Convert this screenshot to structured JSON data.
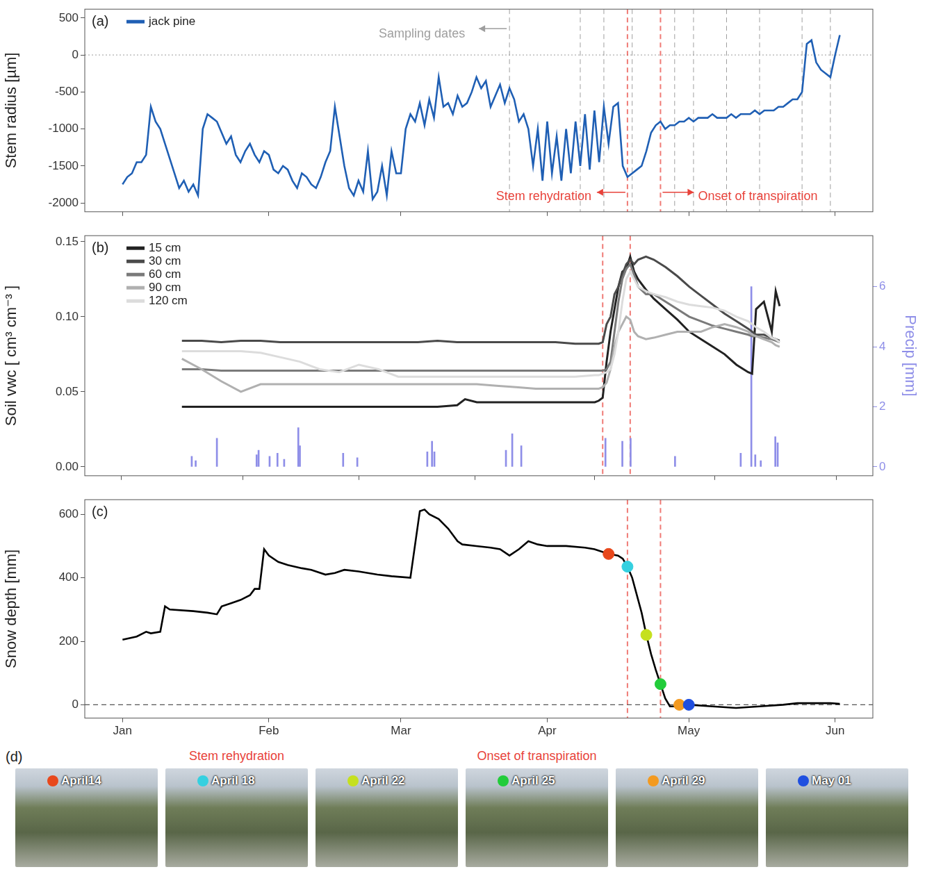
{
  "chart_data": [
    {
      "type": "line",
      "panel": "(a)",
      "x": [
        0,
        1,
        2,
        3,
        4,
        5,
        6,
        7,
        8,
        9,
        10,
        11,
        12,
        13,
        14,
        15,
        16,
        17,
        18,
        19,
        20,
        21,
        22,
        23,
        24,
        25,
        26,
        27,
        28,
        29,
        30,
        31,
        32,
        33,
        34,
        35,
        36,
        37,
        38,
        39,
        40,
        41,
        42,
        43,
        44,
        45,
        46,
        47,
        48,
        49,
        50,
        51,
        52,
        53,
        54,
        55,
        56,
        57,
        58,
        59,
        60,
        61,
        62,
        63,
        64,
        65,
        66,
        67,
        68,
        69,
        70,
        71,
        72,
        73,
        74,
        75,
        76,
        77,
        78,
        79,
        80,
        81,
        82,
        83,
        84,
        85,
        86,
        87,
        88,
        89,
        90,
        91,
        92,
        93,
        94,
        95,
        96,
        97,
        98,
        99,
        100,
        101,
        102,
        103,
        104,
        105,
        106,
        107,
        108,
        109,
        110,
        111,
        112,
        113,
        114,
        115,
        116,
        117,
        118,
        119,
        120,
        121,
        122,
        123,
        124,
        125,
        126,
        127,
        128,
        129,
        130,
        131,
        132,
        133,
        134,
        135,
        136,
        137,
        138,
        139,
        140,
        141,
        142,
        143,
        144,
        145,
        146,
        147,
        148,
        149,
        150,
        151,
        152
      ],
      "series": [
        {
          "name": "jack pine",
          "color": "#1f5fb4",
          "values": [
            -1750,
            -1650,
            -1600,
            -1450,
            -1450,
            -1350,
            -700,
            -900,
            -1000,
            -1200,
            -1400,
            -1600,
            -1800,
            -1700,
            -1850,
            -1750,
            -1900,
            -1000,
            -800,
            -850,
            -900,
            -1050,
            -1200,
            -1100,
            -1350,
            -1450,
            -1300,
            -1200,
            -1350,
            -1450,
            -1300,
            -1350,
            -1550,
            -1600,
            -1500,
            -1550,
            -1700,
            -1800,
            -1600,
            -1650,
            -1750,
            -1800,
            -1650,
            -1450,
            -1300,
            -700,
            -1100,
            -1500,
            -1800,
            -1900,
            -1700,
            -1850,
            -1300,
            -1950,
            -1850,
            -1500,
            -1900,
            -1300,
            -1600,
            -1600,
            -1000,
            -800,
            -900,
            -650,
            -950,
            -600,
            -850,
            -300,
            -700,
            -650,
            -800,
            -550,
            -700,
            -650,
            -500,
            -300,
            -450,
            -350,
            -700,
            -550,
            -400,
            -650,
            -450,
            -600,
            -900,
            -800,
            -1000,
            -1500,
            -1000,
            -1700,
            -900,
            -1600,
            -1100,
            -1700,
            -1000,
            -1600,
            -900,
            -1500,
            -800,
            -1550,
            -750,
            -1450,
            -700,
            -1200,
            -700,
            -650,
            -1500,
            -1650,
            -1600,
            -1550,
            -1500,
            -1300,
            -1050,
            -950,
            -900,
            -1000,
            -950,
            -950,
            -900,
            -900,
            -850,
            -900,
            -850,
            -850,
            -850,
            -800,
            -850,
            -850,
            -850,
            -800,
            -850,
            -800,
            -800,
            -800,
            -750,
            -800,
            -750,
            -750,
            -750,
            -700,
            -700,
            -650,
            -600,
            -600,
            -500,
            150,
            200,
            -100,
            -200,
            -250,
            -300,
            0,
            270
          ]
        }
      ],
      "xlim": [
        -8,
        159
      ],
      "xticks": [
        {
          "value": 0,
          "label": "Jan"
        },
        {
          "value": 31,
          "label": "Feb"
        },
        {
          "value": 59,
          "label": "Mar"
        },
        {
          "value": 90,
          "label": "Apr"
        },
        {
          "value": 120,
          "label": "May"
        },
        {
          "value": 151,
          "label": "Jun"
        }
      ],
      "ylim": [
        -2120,
        620
      ],
      "yticks": [
        -2000,
        -1500,
        -1000,
        -500,
        0,
        500
      ],
      "y_label": "Stem radius [µm]",
      "tick_labels": "y",
      "grid": false,
      "legend": "upper left",
      "hlines": [
        {
          "y": 0,
          "line_style": "dotted",
          "color": "#b0b0b0"
        }
      ],
      "sampling_dates": {
        "label": "Sampling dates",
        "color": "#9e9e9e",
        "line_style": "dashed",
        "x": [
          82,
          97,
          102,
          108,
          117,
          121,
          128,
          135,
          144,
          150
        ]
      },
      "events": [
        {
          "x": 107,
          "label": "Stem rehydration",
          "color": "#e8423a",
          "line_style": "dashed"
        },
        {
          "x": 114,
          "label": "Onset of transpiration",
          "color": "#e8423a",
          "line_style": "dashed"
        }
      ]
    },
    {
      "type": "line",
      "panel": "(b)",
      "x": [
        0,
        5,
        10,
        15,
        20,
        25,
        30,
        35,
        40,
        45,
        50,
        55,
        60,
        65,
        70,
        72,
        75,
        80,
        85,
        90,
        95,
        100,
        105,
        106,
        107,
        108,
        109,
        110,
        111,
        112,
        113,
        114,
        115,
        116,
        118,
        120,
        123,
        126,
        129,
        132,
        135,
        138,
        141,
        144,
        145,
        146,
        148,
        150,
        151,
        152
      ],
      "series": [
        {
          "name": "15 cm",
          "color": "#222222",
          "values": [
            0.04,
            0.04,
            0.04,
            0.04,
            0.04,
            0.04,
            0.04,
            0.04,
            0.04,
            0.04,
            0.04,
            0.04,
            0.04,
            0.04,
            0.041,
            0.045,
            0.043,
            0.043,
            0.043,
            0.043,
            0.043,
            0.043,
            0.043,
            0.044,
            0.046,
            0.07,
            0.09,
            0.105,
            0.12,
            0.13,
            0.132,
            0.14,
            0.13,
            0.125,
            0.118,
            0.112,
            0.105,
            0.098,
            0.09,
            0.085,
            0.08,
            0.075,
            0.068,
            0.063,
            0.062,
            0.105,
            0.11,
            0.09,
            0.117,
            0.107
          ]
        },
        {
          "name": "30 cm",
          "color": "#4a4a4a",
          "values": [
            0.084,
            0.084,
            0.083,
            0.084,
            0.084,
            0.083,
            0.083,
            0.083,
            0.083,
            0.083,
            0.083,
            0.083,
            0.083,
            0.084,
            0.083,
            0.083,
            0.083,
            0.083,
            0.083,
            0.083,
            0.083,
            0.082,
            0.082,
            0.082,
            0.083,
            0.095,
            0.1,
            0.115,
            0.12,
            0.128,
            0.135,
            0.138,
            0.135,
            0.138,
            0.14,
            0.138,
            0.133,
            0.127,
            0.12,
            0.114,
            0.108,
            0.102,
            0.097,
            0.092,
            0.09,
            0.088,
            0.088,
            0.086,
            0.085,
            0.084
          ]
        },
        {
          "name": "60 cm",
          "color": "#7a7a7a",
          "values": [
            0.065,
            0.065,
            0.064,
            0.064,
            0.064,
            0.064,
            0.064,
            0.064,
            0.064,
            0.064,
            0.064,
            0.064,
            0.064,
            0.064,
            0.064,
            0.064,
            0.064,
            0.064,
            0.064,
            0.064,
            0.064,
            0.064,
            0.064,
            0.064,
            0.064,
            0.065,
            0.07,
            0.09,
            0.11,
            0.125,
            0.132,
            0.135,
            0.128,
            0.12,
            0.115,
            0.115,
            0.11,
            0.105,
            0.1,
            0.097,
            0.094,
            0.092,
            0.09,
            0.088,
            0.087,
            0.087,
            0.086,
            0.085,
            0.084,
            0.083
          ]
        },
        {
          "name": "90 cm",
          "color": "#b0b0b0",
          "values": [
            0.072,
            0.065,
            0.057,
            0.05,
            0.055,
            0.055,
            0.055,
            0.055,
            0.055,
            0.055,
            0.055,
            0.055,
            0.055,
            0.055,
            0.055,
            0.055,
            0.055,
            0.054,
            0.053,
            0.052,
            0.052,
            0.052,
            0.052,
            0.052,
            0.053,
            0.056,
            0.065,
            0.08,
            0.09,
            0.095,
            0.1,
            0.098,
            0.09,
            0.087,
            0.085,
            0.086,
            0.088,
            0.09,
            0.09,
            0.09,
            0.093,
            0.095,
            0.093,
            0.09,
            0.088,
            0.087,
            0.085,
            0.083,
            0.081,
            0.08
          ]
        },
        {
          "name": "120 cm",
          "color": "#dcdcdc",
          "values": [
            0.077,
            0.077,
            0.077,
            0.077,
            0.076,
            0.073,
            0.07,
            0.065,
            0.063,
            0.068,
            0.065,
            0.06,
            0.06,
            0.06,
            0.06,
            0.06,
            0.06,
            0.06,
            0.06,
            0.06,
            0.06,
            0.06,
            0.061,
            0.061,
            0.062,
            0.063,
            0.065,
            0.075,
            0.09,
            0.11,
            0.125,
            0.13,
            0.125,
            0.12,
            0.117,
            0.115,
            0.113,
            0.11,
            0.108,
            0.107,
            0.106,
            0.104,
            0.1,
            0.097,
            0.095,
            0.093,
            0.09,
            0.086,
            0.085,
            0.083
          ]
        },
        {
          "type": "bar",
          "axis": "y2",
          "color": "#8e8ee8",
          "x": [
            2.5,
            3.5,
            8.9,
            19,
            19.5,
            22.3,
            24.3,
            26,
            29.6,
            30,
            41,
            44.6,
            62.4,
            63.6,
            64.2,
            82.4,
            84,
            86.3,
            107.7,
            112,
            114.1,
            125.4,
            142.1,
            144.8,
            145.8,
            147.2,
            150.9,
            151.5
          ],
          "values": [
            0.35,
            0.2,
            0.95,
            0.4,
            0.55,
            0.35,
            0.45,
            0.25,
            1.3,
            0.7,
            0.45,
            0.3,
            0.5,
            0.85,
            0.5,
            0.55,
            1.1,
            0.7,
            0.95,
            0.85,
            0.95,
            0.35,
            0.45,
            6,
            0.4,
            0.2,
            1.0,
            0.8
          ]
        }
      ],
      "xlim": [
        -8,
        159
      ],
      "xticks": [
        {
          "value": 0,
          "label": "Jan"
        },
        {
          "value": 31,
          "label": "Feb"
        },
        {
          "value": 59,
          "label": "Mar"
        },
        {
          "value": 90,
          "label": "Apr"
        },
        {
          "value": 120,
          "label": "May"
        },
        {
          "value": 151,
          "label": "Jun"
        }
      ],
      "ylim": [
        -0.006,
        0.154
      ],
      "yticks": [
        {
          "value": 0,
          "label": "0.00"
        },
        {
          "value": 0.05,
          "label": "0.05"
        },
        {
          "value": 0.1,
          "label": "0.10"
        },
        {
          "value": 0.15,
          "label": "0.15"
        }
      ],
      "y_label": "Soil vwc [ cm³ cm⁻³ ]",
      "y2lim": [
        -0.3,
        7.7
      ],
      "y2ticks": [
        0,
        2,
        4,
        6
      ],
      "y2_label": "Precip [mm]",
      "tick_labels": "y",
      "grid": false,
      "legend": "upper left",
      "events": [
        {
          "x": 107,
          "color": "#e8423a",
          "line_style": "dashed"
        },
        {
          "x": 114,
          "color": "#e8423a",
          "line_style": "dashed"
        }
      ]
    },
    {
      "type": "line",
      "panel": "(c)",
      "x": [
        0,
        3,
        5,
        6,
        8,
        9,
        10,
        15,
        18,
        20,
        21,
        23,
        25,
        27,
        28,
        29,
        30,
        31,
        33,
        35,
        38,
        40,
        43,
        45,
        47,
        50,
        54,
        57,
        61,
        63,
        64,
        65,
        67,
        69,
        71,
        72,
        75,
        78,
        80,
        82,
        84,
        86,
        88,
        90,
        94,
        98,
        100,
        103,
        105,
        106,
        107,
        108,
        110,
        111,
        112,
        113,
        114,
        115,
        116,
        118,
        120,
        125,
        130,
        135,
        140,
        143,
        145,
        150,
        152
      ],
      "series": [
        {
          "color": "#000000",
          "values": [
            205,
            215,
            230,
            225,
            230,
            310,
            300,
            295,
            290,
            285,
            310,
            320,
            330,
            345,
            365,
            365,
            490,
            470,
            450,
            440,
            430,
            425,
            410,
            415,
            425,
            420,
            410,
            405,
            400,
            610,
            615,
            600,
            585,
            555,
            515,
            505,
            500,
            495,
            490,
            470,
            490,
            515,
            505,
            500,
            500,
            495,
            490,
            475,
            470,
            460,
            435,
            400,
            290,
            220,
            160,
            110,
            65,
            20,
            -5,
            -5,
            0,
            -5,
            -10,
            -5,
            0,
            5,
            5,
            5,
            3
          ]
        }
      ],
      "markers": {
        "marker": "circle",
        "x": [
          103,
          107,
          111,
          114,
          118,
          120
        ],
        "values": [
          475,
          435,
          220,
          65,
          0,
          0
        ],
        "colors": [
          "#e8481c",
          "#35d0e0",
          "#c5e01f",
          "#22cc3a",
          "#f39a20",
          "#1f4fe0"
        ]
      },
      "xlim": [
        -8,
        159
      ],
      "xticks": [
        {
          "value": 0,
          "label": "Jan"
        },
        {
          "value": 31,
          "label": "Feb"
        },
        {
          "value": 59,
          "label": "Mar"
        },
        {
          "value": 90,
          "label": "Apr"
        },
        {
          "value": 120,
          "label": "May"
        },
        {
          "value": 151,
          "label": "Jun"
        }
      ],
      "ylim": [
        -42,
        646
      ],
      "yticks": [
        0,
        200,
        400,
        600
      ],
      "y_label": "Snow depth [mm]",
      "grid": false,
      "hlines": [
        {
          "y": 0,
          "line_style": "dashed",
          "color": "#555555"
        }
      ],
      "events": [
        {
          "x": 107,
          "color": "#e8423a",
          "line_style": "dashed"
        },
        {
          "x": 114,
          "color": "#e8423a",
          "line_style": "dashed"
        }
      ]
    }
  ],
  "photos": {
    "panel": "(d)",
    "items": [
      {
        "label": "April14",
        "color": "#e8481c"
      },
      {
        "label": "April 18",
        "color": "#35d0e0",
        "heading": "Stem rehydration"
      },
      {
        "label": "April 22",
        "color": "#c5e01f"
      },
      {
        "label": "April 25",
        "color": "#22cc3a",
        "heading": "Onset of transpiration"
      },
      {
        "label": "April 29",
        "color": "#f39a20"
      },
      {
        "label": "May 01",
        "color": "#1f4fe0"
      }
    ]
  }
}
